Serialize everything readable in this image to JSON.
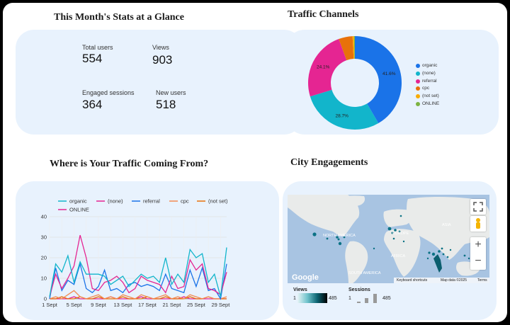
{
  "stats": {
    "title": "This Month's Stats at a Glance",
    "total_users_label": "Total users",
    "total_users": "554",
    "views_label": "Views",
    "views": "903",
    "engaged_label": "Engaged sessions",
    "engaged": "364",
    "new_users_label": "New users",
    "new_users": "518"
  },
  "traffic": {
    "title": "Traffic Channels",
    "chart_data": {
      "type": "pie",
      "slices": [
        {
          "label": "organic",
          "percent": 41.6,
          "display": "41.6%",
          "color": "#1a73e8"
        },
        {
          "label": "(none)",
          "percent": 28.7,
          "display": "28.7%",
          "color": "#12b5cb"
        },
        {
          "label": "referral",
          "percent": 24.1,
          "display": "24.1%",
          "color": "#e52592"
        },
        {
          "label": "cpc",
          "percent": 4.8,
          "display": "",
          "color": "#e8710a"
        },
        {
          "label": "(not set)",
          "percent": 0.5,
          "display": "",
          "color": "#f9ab00"
        },
        {
          "label": "ONLINE",
          "percent": 0.3,
          "display": "",
          "color": "#7cb342"
        }
      ]
    }
  },
  "where": {
    "title": "Where is Your Traffic Coming From?",
    "chart_data": {
      "type": "line",
      "x": [
        "1 Sept",
        "2 Sept",
        "3 Sept",
        "4 Sept",
        "5 Sept",
        "6 Sept",
        "7 Sept",
        "8 Sept",
        "9 Sept",
        "10 Sept",
        "11 Sept",
        "12 Sept",
        "13 Sept",
        "14 Sept",
        "15 Sept",
        "16 Sept",
        "17 Sept",
        "18 Sept",
        "19 Sept",
        "20 Sept",
        "21 Sept",
        "22 Sept",
        "23 Sept",
        "24 Sept",
        "25 Sept",
        "26 Sept",
        "27 Sept",
        "28 Sept",
        "29 Sept",
        "30 Sept"
      ],
      "xticks": [
        "1 Sept",
        "5 Sept",
        "9 Sept",
        "13 Sept",
        "17 Sept",
        "21 Sept",
        "25 Sept",
        "29 Sept"
      ],
      "ylim": [
        0,
        40
      ],
      "yticks": [
        0,
        10,
        20,
        30,
        40
      ],
      "series": [
        {
          "name": "organic",
          "color": "#12b5cb",
          "values": [
            1,
            17,
            13,
            21,
            8,
            18,
            12,
            12,
            12,
            11,
            7,
            9,
            11,
            6,
            9,
            12,
            10,
            11,
            8,
            20,
            7,
            12,
            8,
            24,
            20,
            22,
            8,
            12,
            1,
            25
          ]
        },
        {
          "name": "(none)",
          "color": "#e52592",
          "values": [
            1,
            12,
            5,
            10,
            16,
            31,
            20,
            5,
            4,
            8,
            9,
            11,
            8,
            3,
            5,
            11,
            9,
            8,
            7,
            3,
            11,
            5,
            6,
            19,
            14,
            17,
            5,
            4,
            2,
            13
          ]
        },
        {
          "name": "referral",
          "color": "#1a73e8",
          "values": [
            0,
            15,
            4,
            9,
            7,
            17,
            5,
            3,
            6,
            14,
            4,
            5,
            3,
            7,
            8,
            6,
            7,
            6,
            4,
            12,
            5,
            4,
            3,
            14,
            6,
            15,
            4,
            5,
            0,
            17
          ]
        },
        {
          "name": "cpc",
          "color": "#f28b52",
          "values": [
            0,
            1,
            0,
            2,
            4,
            1,
            0,
            1,
            2,
            0,
            1,
            0,
            2,
            1,
            0,
            2,
            1,
            0,
            1,
            2,
            0,
            1,
            0,
            2,
            1,
            0,
            1,
            0,
            0,
            1
          ]
        },
        {
          "name": "(not set)",
          "color": "#e8710a",
          "values": [
            0,
            0,
            1,
            0,
            0,
            1,
            0,
            0,
            1,
            0,
            0,
            0,
            1,
            0,
            0,
            0,
            1,
            0,
            0,
            1,
            0,
            0,
            0,
            1,
            0,
            0,
            1,
            0,
            0,
            0
          ]
        },
        {
          "name": "ONLINE",
          "color": "#e52592",
          "values": [
            0,
            0,
            0,
            0,
            1,
            0,
            0,
            0,
            0,
            0,
            1,
            0,
            0,
            0,
            0,
            1,
            0,
            0,
            0,
            0,
            0,
            0,
            1,
            0,
            0,
            0,
            0,
            0,
            0,
            0
          ]
        }
      ]
    }
  },
  "city": {
    "title": "City Engagements",
    "map_labels": [
      "NORTH AMERICA",
      "EUROPE",
      "ASIA",
      "AFRICA",
      "SOUTH AMERICA"
    ],
    "google": "Google",
    "shortcuts": "Keyboard shortcuts",
    "map_data": "Map data ©2025",
    "terms": "Terms",
    "views_label": "Views",
    "views_min": "1",
    "views_max": "485",
    "sessions_label": "Sessions",
    "sessions_min": "1",
    "sessions_max": "485"
  }
}
